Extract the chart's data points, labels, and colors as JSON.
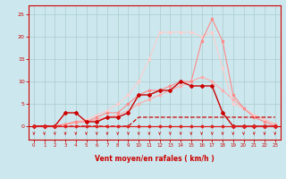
{
  "bg_color": "#cce8ee",
  "grid_color": "#aacccc",
  "spine_color": "#cc0000",
  "tick_color": "#cc0000",
  "font_color": "#cc0000",
  "xlabel": "Vent moyen/en rafales ( km/h )",
  "xlim": [
    -0.5,
    23.5
  ],
  "ylim": [
    -3,
    27
  ],
  "yticks": [
    0,
    5,
    10,
    15,
    20,
    25
  ],
  "xticks": [
    0,
    1,
    2,
    3,
    4,
    5,
    6,
    7,
    8,
    9,
    10,
    11,
    12,
    13,
    14,
    15,
    16,
    17,
    18,
    19,
    20,
    21,
    22,
    23
  ],
  "series": [
    {
      "y": [
        0,
        0,
        0,
        0,
        0,
        0,
        0,
        0,
        0,
        0,
        0,
        0,
        0,
        0,
        0,
        0,
        0,
        0,
        0,
        0,
        0,
        0,
        0,
        0
      ],
      "color": "#dd2222",
      "marker": "D",
      "ms": 1.5,
      "lw": 0.8,
      "ls": "-",
      "zorder": 5
    },
    {
      "y": [
        0,
        0,
        0,
        0,
        0,
        0,
        0,
        0,
        0,
        0,
        2,
        2,
        2,
        2,
        2,
        2,
        2,
        2,
        2,
        2,
        2,
        2,
        2,
        2
      ],
      "color": "#cc0000",
      "marker": null,
      "ms": 0,
      "lw": 0.9,
      "ls": "--",
      "zorder": 3
    },
    {
      "y": [
        0,
        0,
        0,
        0.3,
        0.8,
        1,
        1.5,
        2,
        2.5,
        3.5,
        5,
        6,
        7,
        8,
        9,
        10,
        11,
        10,
        8,
        6,
        4,
        2.5,
        1.5,
        0.5
      ],
      "color": "#ffaaaa",
      "marker": "x",
      "ms": 2,
      "lw": 0.8,
      "ls": "-",
      "zorder": 2
    },
    {
      "y": [
        0,
        0,
        0,
        0.5,
        1,
        1.5,
        2.5,
        3.5,
        5,
        7,
        10,
        15,
        21,
        21,
        21,
        21,
        20,
        21,
        13,
        5,
        4,
        2.5,
        1.5,
        0
      ],
      "color": "#ffcccc",
      "marker": "x",
      "ms": 2,
      "lw": 0.8,
      "ls": "-",
      "zorder": 2
    },
    {
      "y": [
        0,
        0,
        0,
        0.5,
        1,
        1,
        2,
        3,
        3,
        5,
        7,
        8,
        8,
        9,
        10,
        10,
        19,
        24,
        19,
        7,
        4,
        2,
        1,
        0
      ],
      "color": "#ff8888",
      "marker": "x",
      "ms": 2,
      "lw": 0.8,
      "ls": "-",
      "zorder": 2
    },
    {
      "y": [
        0,
        0,
        0,
        3,
        3,
        1,
        1,
        2,
        2,
        3,
        7,
        7,
        8,
        8,
        10,
        9,
        9,
        9,
        3,
        0,
        0,
        0,
        0,
        0
      ],
      "color": "#cc0000",
      "marker": "D",
      "ms": 2,
      "lw": 1.0,
      "ls": "-",
      "zorder": 4
    }
  ]
}
